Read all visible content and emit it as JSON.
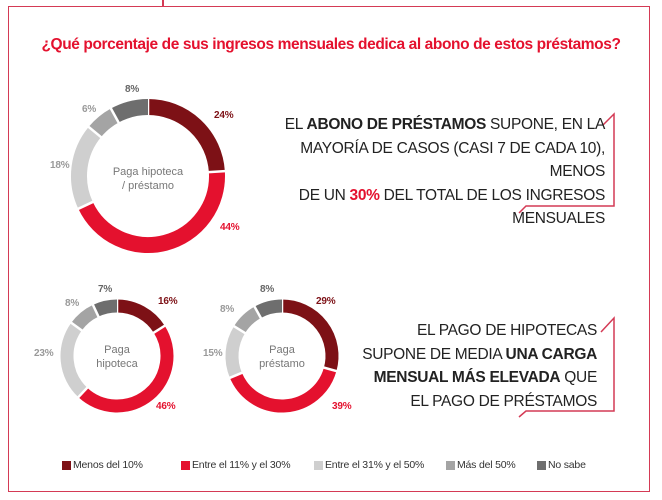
{
  "title": "¿Qué porcentaje de sus ingresos mensuales dedica al abono de estos préstamos?",
  "colors": {
    "accent": "#e4112e",
    "frame": "#d43a55",
    "Menos del 10%": "#7d1116",
    "Entre el 11% y el 30%": "#e4112e",
    "Entre el 31% y el 50%": "#cfcfcf",
    "Más del 50%": "#a4a4a4",
    "No sabe": "#6e6e6e"
  },
  "chart_data": [
    {
      "type": "pie",
      "variant": "donut",
      "center_label": [
        "Paga hipoteca",
        "/ préstamo"
      ],
      "categories": [
        "Menos del 10%",
        "Entre el 11% y el 30%",
        "Entre el 31% y el 50%",
        "Más del 50%",
        "No sabe"
      ],
      "values": [
        24,
        44,
        18,
        6,
        8
      ],
      "data_labels": [
        "24%",
        "44%",
        "18%",
        "6%",
        "8%"
      ]
    },
    {
      "type": "pie",
      "variant": "donut",
      "center_label": [
        "Paga",
        "hipoteca"
      ],
      "categories": [
        "Menos del 10%",
        "Entre el 11% y el 30%",
        "Entre el 31% y el 50%",
        "Más del 50%",
        "No sabe"
      ],
      "values": [
        16,
        46,
        23,
        8,
        7
      ],
      "data_labels": [
        "16%",
        "46%",
        "23%",
        "8%",
        "7%"
      ]
    },
    {
      "type": "pie",
      "variant": "donut",
      "center_label": [
        "Paga",
        "préstamo"
      ],
      "categories": [
        "Menos del 10%",
        "Entre el 11% y el 30%",
        "Entre el 31% y el 50%",
        "Más del 50%",
        "No sabe"
      ],
      "values": [
        29,
        39,
        15,
        8,
        8
      ],
      "data_labels": [
        "29%",
        "39%",
        "15%",
        "8%",
        "8%"
      ]
    }
  ],
  "legend": [
    "Menos del 10%",
    "Entre el 11% y el 30%",
    "Entre el 31% y el 50%",
    "Más del 50%",
    "No sabe"
  ],
  "callout1": {
    "l1a": "EL ",
    "l1b": "ABONO DE PRÉSTAMOS",
    "l1c": " SUPONE, EN LA",
    "l2": "MAYORÍA DE CASOS (CASI 7 DE CADA 10), MENOS",
    "l3a": "DE UN ",
    "l3b": "30%",
    "l3c": " DEL TOTAL DE LOS INGRESOS",
    "l4": "MENSUALES"
  },
  "callout2": {
    "l1": "EL PAGO DE HIPOTECAS",
    "l2a": "SUPONE DE MEDIA ",
    "l2b": "UNA CARGA",
    "l3a": "MENSUAL MÁS ELEVADA",
    "l3b": " QUE",
    "l4": "EL PAGO DE PRÉSTAMOS"
  }
}
